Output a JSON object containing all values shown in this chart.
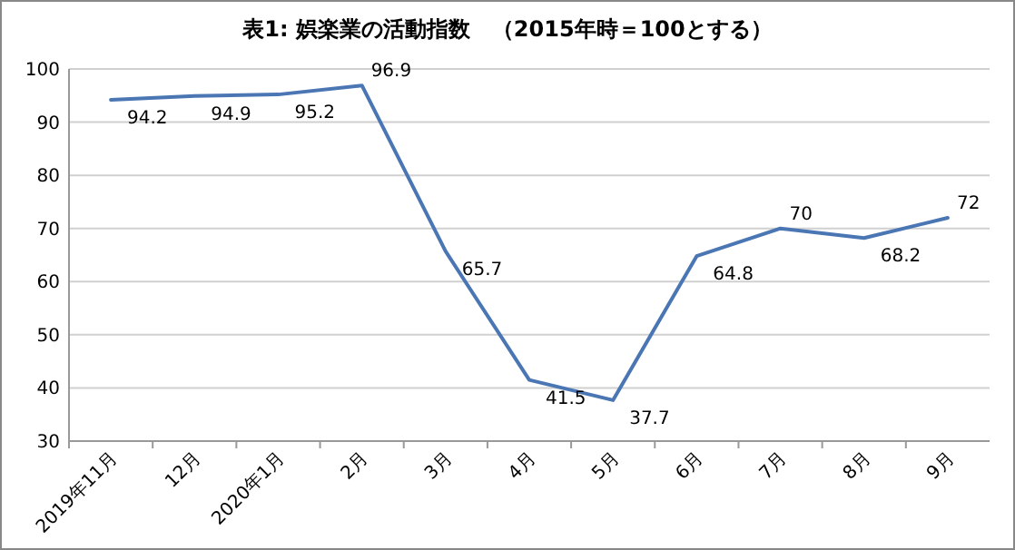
{
  "chart_data": {
    "type": "line",
    "title": "表1: 娯楽業の活動指数　（2015年時＝100とする）",
    "categories": [
      "2019年11月",
      "12月",
      "2020年1月",
      "2月",
      "3月",
      "4月",
      "5月",
      "6月",
      "7月",
      "8月",
      "9月"
    ],
    "series": [
      {
        "color": "#4a76b4",
        "values": [
          94.2,
          94.9,
          95.2,
          96.9,
          65.7,
          41.5,
          37.7,
          64.8,
          70,
          68.2,
          72
        ]
      }
    ],
    "ylim": [
      30,
      100
    ],
    "yticks": [
      30,
      40,
      50,
      60,
      70,
      80,
      90,
      100
    ],
    "grid": "y",
    "data_labels": true,
    "marker": "none",
    "line_style": "solid"
  }
}
